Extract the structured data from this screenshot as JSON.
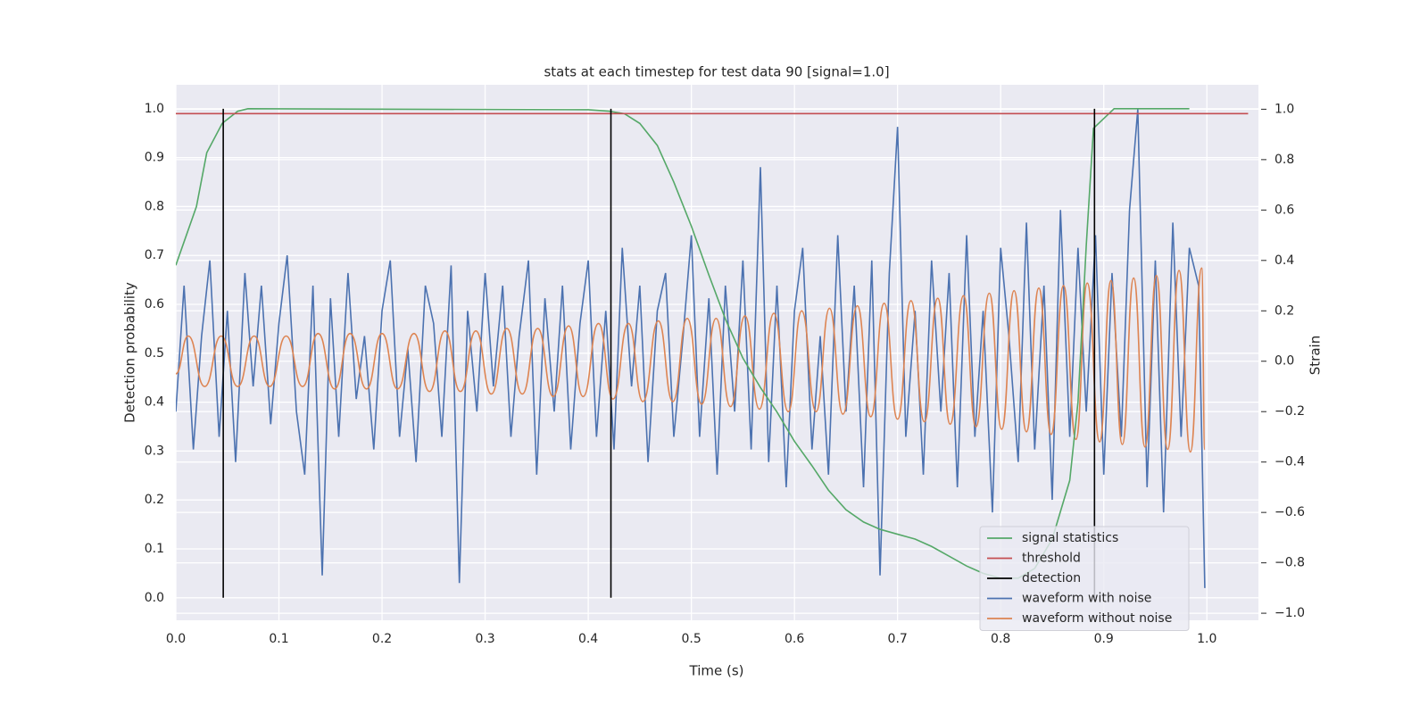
{
  "chart_data": {
    "type": "line",
    "title": "stats at each timestep for test data 90 [signal=1.0]",
    "x_label": "Time (s)",
    "y_label": "Detection probability",
    "y2_label": "Strain",
    "xlim": [
      0,
      1.05
    ],
    "ylim": [
      -0.046,
      1.049
    ],
    "y2lim": [
      -1.028,
      1.097
    ],
    "xticks": [
      {
        "value": 0,
        "label": "0.0"
      },
      0.1,
      0.2,
      0.3,
      0.4,
      0.5,
      0.6,
      0.7,
      0.8,
      0.9,
      {
        "value": 1,
        "label": "1.0"
      }
    ],
    "yticks": [
      {
        "value": 0,
        "label": "0.0"
      },
      0.1,
      0.2,
      0.3,
      0.4,
      0.5,
      0.6,
      0.7,
      0.8,
      0.9,
      {
        "value": 1,
        "label": "1.0"
      }
    ],
    "y2ticks": [
      {
        "value": -1,
        "label": "−1.0"
      },
      {
        "value": -0.8,
        "label": "−0.8"
      },
      {
        "value": -0.6,
        "label": "−0.6"
      },
      {
        "value": -0.4,
        "label": "−0.4"
      },
      {
        "value": -0.2,
        "label": "−0.2"
      },
      {
        "value": 0,
        "label": "0.0"
      },
      0.2,
      0.4,
      0.6,
      0.8,
      {
        "value": 1,
        "label": "1.0"
      }
    ],
    "grid": true,
    "legend": "lower right",
    "series": [
      {
        "name": "signal statistics",
        "color": "#55a868",
        "style": "line",
        "x": [
          0,
          0.01,
          0.02,
          0.03,
          0.045,
          0.06,
          0.07,
          0.4,
          0.42,
          0.435,
          0.45,
          0.467,
          0.483,
          0.5,
          0.517,
          0.533,
          0.55,
          0.567,
          0.583,
          0.6,
          0.617,
          0.633,
          0.65,
          0.667,
          0.683,
          0.7,
          0.717,
          0.733,
          0.75,
          0.767,
          0.783,
          0.8,
          0.817,
          0.833,
          0.85,
          0.867,
          0.875,
          0.883,
          0.89,
          0.9,
          0.91,
          0.95,
          0.983
        ],
        "values": [
          0.68,
          0.74,
          0.8,
          0.91,
          0.97,
          0.995,
          1.0,
          0.998,
          0.995,
          0.99,
          0.97,
          0.925,
          0.85,
          0.76,
          0.66,
          0.57,
          0.49,
          0.43,
          0.38,
          0.32,
          0.27,
          0.22,
          0.18,
          0.155,
          0.14,
          0.13,
          0.12,
          0.105,
          0.085,
          0.065,
          0.05,
          0.04,
          0.04,
          0.06,
          0.12,
          0.24,
          0.4,
          0.72,
          0.96,
          0.98,
          1.0,
          1.0,
          1.0
        ]
      },
      {
        "name": "threshold",
        "color": "#c44e52",
        "style": "line",
        "x": [
          0,
          1.04
        ],
        "values": [
          0.99,
          0.99
        ]
      },
      {
        "name": "detection",
        "color": "#000000",
        "style": "vlines",
        "x": [
          0.046,
          0.422,
          0.891
        ],
        "ymin": [
          0,
          0,
          0
        ],
        "values": [
          1,
          1,
          1
        ]
      },
      {
        "name": "waveform with noise",
        "color": "#4c72b0",
        "style": "line",
        "axis": "y2",
        "x": [
          0,
          0.008,
          0.017,
          0.025,
          0.033,
          0.042,
          0.05,
          0.058,
          0.067,
          0.075,
          0.083,
          0.092,
          0.1,
          0.108,
          0.117,
          0.125,
          0.133,
          0.142,
          0.15,
          0.158,
          0.167,
          0.175,
          0.183,
          0.192,
          0.2,
          0.208,
          0.217,
          0.225,
          0.233,
          0.242,
          0.25,
          0.258,
          0.267,
          0.275,
          0.283,
          0.292,
          0.3,
          0.308,
          0.317,
          0.325,
          0.333,
          0.342,
          0.35,
          0.358,
          0.367,
          0.375,
          0.383,
          0.392,
          0.4,
          0.408,
          0.417,
          0.425,
          0.433,
          0.442,
          0.45,
          0.458,
          0.467,
          0.475,
          0.483,
          0.492,
          0.5,
          0.508,
          0.517,
          0.525,
          0.533,
          0.542,
          0.55,
          0.558,
          0.567,
          0.575,
          0.583,
          0.592,
          0.6,
          0.608,
          0.617,
          0.625,
          0.633,
          0.642,
          0.65,
          0.658,
          0.667,
          0.675,
          0.683,
          0.692,
          0.7,
          0.708,
          0.717,
          0.725,
          0.733,
          0.742,
          0.75,
          0.758,
          0.767,
          0.775,
          0.783,
          0.792,
          0.8,
          0.808,
          0.817,
          0.825,
          0.833,
          0.842,
          0.85,
          0.858,
          0.867,
          0.875,
          0.883,
          0.892,
          0.9,
          0.908,
          0.917,
          0.925,
          0.933,
          0.942,
          0.95,
          0.958,
          0.967,
          0.975,
          0.983,
          0.992,
          0.998
        ],
        "values": [
          -0.2,
          0.3,
          -0.35,
          0.1,
          0.4,
          -0.3,
          0.2,
          -0.4,
          0.35,
          -0.1,
          0.3,
          -0.25,
          0.15,
          0.42,
          -0.2,
          -0.45,
          0.3,
          -0.85,
          0.25,
          -0.3,
          0.35,
          -0.15,
          0.1,
          -0.35,
          0.2,
          0.4,
          -0.3,
          0.05,
          -0.4,
          0.3,
          0.15,
          -0.3,
          0.38,
          -0.88,
          0.2,
          -0.2,
          0.35,
          -0.1,
          0.3,
          -0.3,
          0.1,
          0.4,
          -0.45,
          0.25,
          -0.2,
          0.3,
          -0.35,
          0.15,
          0.4,
          -0.3,
          0.2,
          -0.35,
          0.45,
          -0.1,
          0.3,
          -0.4,
          0.2,
          0.35,
          -0.3,
          0.1,
          0.5,
          -0.3,
          0.25,
          -0.45,
          0.3,
          -0.2,
          0.4,
          -0.35,
          0.77,
          -0.4,
          0.3,
          -0.5,
          0.2,
          0.45,
          -0.35,
          0.1,
          -0.45,
          0.5,
          -0.2,
          0.3,
          -0.5,
          0.4,
          -0.85,
          0.35,
          0.93,
          -0.3,
          0.2,
          -0.45,
          0.4,
          -0.2,
          0.35,
          -0.5,
          0.5,
          -0.3,
          0.2,
          -0.6,
          0.45,
          0.1,
          -0.4,
          0.55,
          -0.35,
          0.3,
          -0.55,
          0.6,
          -0.3,
          0.45,
          -0.2,
          0.5,
          -0.45,
          0.35,
          -0.3,
          0.6,
          1.0,
          -0.5,
          0.4,
          -0.6,
          0.55,
          -0.3,
          0.45,
          0.3,
          -0.9
        ]
      },
      {
        "name": "waveform without noise",
        "color": "#dd8452",
        "style": "smooth",
        "axis": "y2",
        "x": [
          0,
          0.012,
          0.028,
          0.044,
          0.06,
          0.076,
          0.091,
          0.107,
          0.123,
          0.138,
          0.154,
          0.169,
          0.185,
          0.2,
          0.215,
          0.231,
          0.246,
          0.261,
          0.276,
          0.291,
          0.306,
          0.321,
          0.336,
          0.351,
          0.366,
          0.381,
          0.395,
          0.41,
          0.424,
          0.439,
          0.453,
          0.468,
          0.482,
          0.496,
          0.51,
          0.524,
          0.538,
          0.552,
          0.566,
          0.58,
          0.594,
          0.607,
          0.621,
          0.634,
          0.647,
          0.661,
          0.674,
          0.687,
          0.7,
          0.713,
          0.726,
          0.739,
          0.751,
          0.764,
          0.776,
          0.789,
          0.801,
          0.813,
          0.825,
          0.837,
          0.849,
          0.861,
          0.873,
          0.884,
          0.896,
          0.907,
          0.918,
          0.929,
          0.94,
          0.951,
          0.962,
          0.973,
          0.984,
          0.995,
          0.998
        ],
        "values": [
          -0.05,
          0.1,
          -0.1,
          0.1,
          -0.1,
          0.1,
          -0.1,
          0.1,
          -0.1,
          0.11,
          -0.11,
          0.11,
          -0.11,
          0.11,
          -0.11,
          0.11,
          -0.12,
          0.12,
          -0.12,
          0.12,
          -0.13,
          0.13,
          -0.13,
          0.13,
          -0.14,
          0.14,
          -0.14,
          0.15,
          -0.15,
          0.15,
          -0.16,
          0.16,
          -0.16,
          0.17,
          -0.17,
          0.17,
          -0.18,
          0.18,
          -0.19,
          0.19,
          -0.2,
          0.2,
          -0.2,
          0.21,
          -0.21,
          0.22,
          -0.22,
          0.23,
          -0.23,
          0.24,
          -0.24,
          0.25,
          -0.25,
          0.26,
          -0.26,
          0.27,
          -0.27,
          0.28,
          -0.28,
          0.29,
          -0.29,
          0.3,
          -0.31,
          0.31,
          -0.32,
          0.32,
          -0.33,
          0.33,
          -0.34,
          0.34,
          -0.35,
          0.36,
          -0.36,
          0.37,
          -0.35
        ]
      }
    ]
  }
}
